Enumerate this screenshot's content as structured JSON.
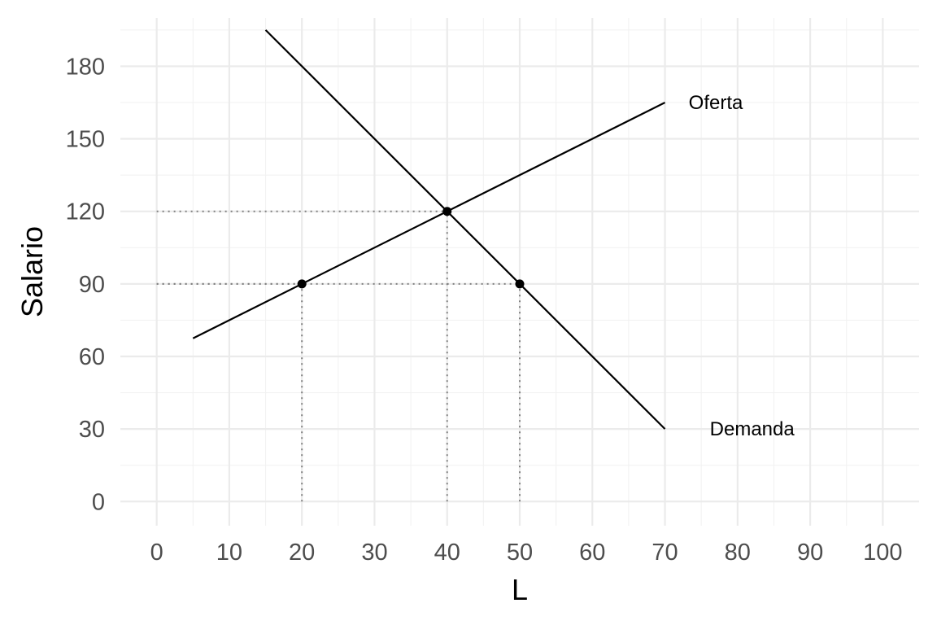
{
  "chart_data": {
    "type": "line",
    "xlabel": "L",
    "ylabel": "Salario",
    "xlim": [
      -5,
      105
    ],
    "ylim": [
      -10,
      200
    ],
    "x_ticks": [
      0,
      10,
      20,
      30,
      40,
      50,
      60,
      70,
      80,
      90,
      100
    ],
    "y_ticks": [
      0,
      30,
      60,
      90,
      120,
      150,
      180
    ],
    "grid": true,
    "series": [
      {
        "name": "Oferta",
        "x": [
          5,
          70
        ],
        "y": [
          67.5,
          165
        ]
      },
      {
        "name": "Demanda",
        "x": [
          15,
          70
        ],
        "y": [
          195,
          30
        ]
      }
    ],
    "points": [
      {
        "x": 20,
        "y": 90
      },
      {
        "x": 40,
        "y": 120
      },
      {
        "x": 50,
        "y": 90
      }
    ],
    "guides": [
      {
        "x": 20,
        "y": 90
      },
      {
        "x": 40,
        "y": 120
      },
      {
        "x": 50,
        "y": 90
      }
    ],
    "labels": [
      {
        "text": "Oferta",
        "x": 77,
        "y": 165
      },
      {
        "text": "Demanda",
        "x": 82,
        "y": 30
      }
    ]
  }
}
